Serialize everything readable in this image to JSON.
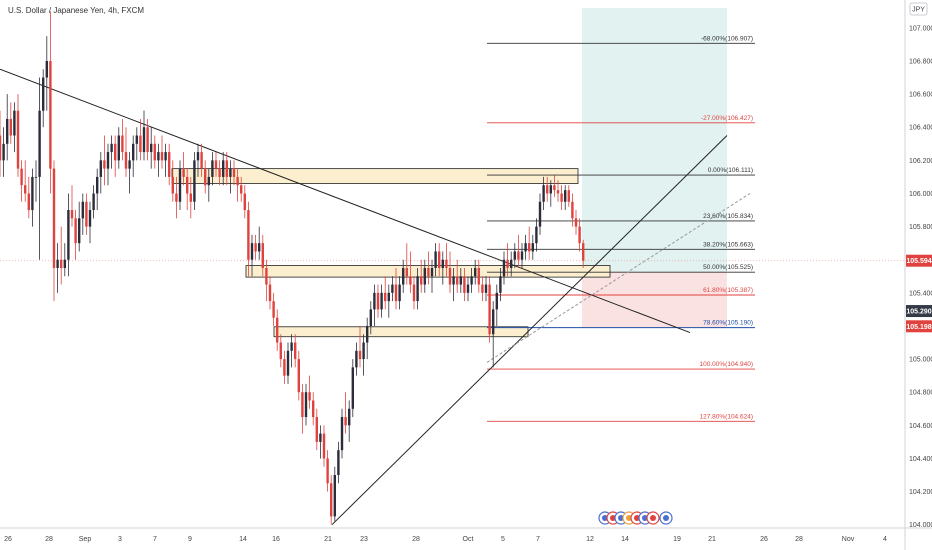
{
  "title": "U.S. Dollar / Japanese Yen, 4h, FXCM",
  "currency_badge": "JPY",
  "colors": {
    "up": "#2b2d3b",
    "down": "#e0433f",
    "fib_black": "#333333",
    "fib_red": "#e0433f",
    "fib_blue": "#1f4ea6",
    "zone_fill": "#fbefcf",
    "zone_stroke": "#222222",
    "target_fill": "#e1f2f0",
    "stop_fill": "#fbe2e2",
    "current_price_line": "#f2a0a0",
    "badge_red": "#e0433f",
    "badge_dark": "#333a45"
  },
  "chart_data": {
    "type": "candlestick",
    "title": "U.S. Dollar / Japanese Yen, 4h, FXCM",
    "ylim": [
      103.98,
      107.12
    ],
    "y_ticks": [
      "104.000",
      "104.200",
      "104.400",
      "104.600",
      "104.800",
      "105.000",
      "105.200",
      "105.400",
      "105.600",
      "105.800",
      "106.000",
      "106.200",
      "106.400",
      "106.600",
      "106.800",
      "107.000"
    ],
    "x_ticks": [
      {
        "label": "26",
        "x": 8
      },
      {
        "label": "28",
        "x": 49
      },
      {
        "label": "Sep",
        "x": 85
      },
      {
        "label": "3",
        "x": 120
      },
      {
        "label": "7",
        "x": 155
      },
      {
        "label": "9",
        "x": 190
      },
      {
        "label": "14",
        "x": 243
      },
      {
        "label": "16",
        "x": 276
      },
      {
        "label": "21",
        "x": 328
      },
      {
        "label": "23",
        "x": 364
      },
      {
        "label": "28",
        "x": 416
      },
      {
        "label": "Oct",
        "x": 468
      },
      {
        "label": "5",
        "x": 503
      },
      {
        "label": "7",
        "x": 538
      },
      {
        "label": "12",
        "x": 590
      },
      {
        "label": "14",
        "x": 625
      },
      {
        "label": "19",
        "x": 677
      },
      {
        "label": "21",
        "x": 712
      },
      {
        "label": "26",
        "x": 764
      },
      {
        "label": "28",
        "x": 799
      },
      {
        "label": "Nov",
        "x": 848
      },
      {
        "label": "4",
        "x": 885
      }
    ],
    "x_range": [
      0,
      905
    ],
    "candles": [
      [
        0,
        106.35,
        106.5,
        106.1,
        106.2
      ],
      [
        3.6,
        106.2,
        106.4,
        106.1,
        106.3
      ],
      [
        7.2,
        106.3,
        106.6,
        106.2,
        106.45
      ],
      [
        10.8,
        106.45,
        106.55,
        106.3,
        106.35
      ],
      [
        14.4,
        106.35,
        106.55,
        106.25,
        106.5
      ],
      [
        18,
        106.5,
        106.6,
        106.1,
        106.15
      ],
      [
        21.6,
        106.15,
        106.2,
        105.95,
        106.05
      ],
      [
        25.2,
        106.05,
        106.2,
        105.95,
        106.0
      ],
      [
        28.8,
        106.0,
        106.1,
        105.85,
        105.9
      ],
      [
        32.4,
        105.9,
        106.15,
        105.8,
        106.1
      ],
      [
        36,
        106.1,
        106.2,
        105.95,
        106.1
      ],
      [
        39.6,
        106.1,
        106.7,
        105.6,
        106.5
      ],
      [
        43.2,
        106.5,
        106.75,
        106.4,
        106.7
      ],
      [
        46.8,
        106.7,
        106.95,
        106.5,
        106.8
      ],
      [
        50.4,
        106.8,
        107.1,
        106.0,
        106.15
      ],
      [
        54,
        106.15,
        106.2,
        105.35,
        105.55
      ],
      [
        57.6,
        105.55,
        105.7,
        105.4,
        105.6
      ],
      [
        61.2,
        105.6,
        105.8,
        105.45,
        105.55
      ],
      [
        64.8,
        105.55,
        105.7,
        105.5,
        105.6
      ],
      [
        68.4,
        105.6,
        106.0,
        105.5,
        105.9
      ],
      [
        72,
        105.9,
        106.05,
        105.8,
        105.85
      ],
      [
        75.6,
        105.85,
        105.9,
        105.6,
        105.7
      ],
      [
        79.2,
        105.7,
        105.95,
        105.65,
        105.85
      ],
      [
        82.8,
        105.85,
        106.0,
        105.75,
        105.95
      ],
      [
        86.4,
        105.95,
        106.0,
        105.75,
        105.8
      ],
      [
        90,
        105.8,
        105.95,
        105.7,
        105.9
      ],
      [
        93.6,
        105.9,
        106.05,
        105.85,
        106.0
      ],
      [
        97.2,
        106.0,
        106.15,
        105.9,
        106.1
      ],
      [
        100.8,
        106.1,
        106.25,
        106.0,
        106.2
      ],
      [
        104.4,
        106.2,
        106.35,
        106.05,
        106.15
      ],
      [
        108,
        106.15,
        106.3,
        106.05,
        106.25
      ],
      [
        111.6,
        106.25,
        106.35,
        106.15,
        106.3
      ],
      [
        115.2,
        106.3,
        106.35,
        106.1,
        106.2
      ],
      [
        118.8,
        106.2,
        106.4,
        106.15,
        106.35
      ],
      [
        122.4,
        106.35,
        106.45,
        106.2,
        106.25
      ],
      [
        126,
        106.25,
        106.4,
        106.1,
        106.15
      ],
      [
        129.6,
        106.15,
        106.25,
        106.0,
        106.2
      ],
      [
        133.2,
        106.2,
        106.35,
        106.1,
        106.3
      ],
      [
        136.8,
        106.3,
        106.4,
        106.2,
        106.35
      ],
      [
        140.4,
        106.35,
        106.45,
        106.2,
        106.25
      ],
      [
        144,
        106.25,
        106.5,
        106.2,
        106.4
      ],
      [
        147.6,
        106.4,
        106.45,
        106.2,
        106.25
      ],
      [
        151.2,
        106.25,
        106.4,
        106.15,
        106.3
      ],
      [
        154.8,
        106.3,
        106.35,
        106.15,
        106.2
      ],
      [
        158.4,
        106.2,
        106.3,
        106.1,
        106.25
      ],
      [
        162,
        106.25,
        106.35,
        106.15,
        106.2
      ],
      [
        165.6,
        106.2,
        106.3,
        106.1,
        106.25
      ],
      [
        169.2,
        106.25,
        106.3,
        106.05,
        106.1
      ],
      [
        172.8,
        106.1,
        106.2,
        105.95,
        106.0
      ],
      [
        176.4,
        106.0,
        106.1,
        105.85,
        105.95
      ],
      [
        180,
        105.95,
        106.2,
        105.9,
        106.15
      ],
      [
        183.6,
        106.15,
        106.25,
        106.05,
        106.1
      ],
      [
        187.2,
        106.1,
        106.15,
        105.9,
        106.0
      ],
      [
        190.8,
        106.0,
        106.1,
        105.85,
        105.95
      ],
      [
        194.4,
        105.95,
        106.25,
        105.9,
        106.2
      ],
      [
        198,
        106.2,
        106.3,
        106.1,
        106.25
      ],
      [
        201.6,
        106.25,
        106.3,
        106.1,
        106.15
      ],
      [
        205.2,
        106.15,
        106.2,
        106.0,
        106.05
      ],
      [
        208.8,
        106.05,
        106.15,
        105.95,
        106.1
      ],
      [
        212.4,
        106.1,
        106.25,
        106.05,
        106.2
      ],
      [
        216,
        106.2,
        106.25,
        106.1,
        106.15
      ],
      [
        219.6,
        106.15,
        106.2,
        106.05,
        106.1
      ],
      [
        223.2,
        106.1,
        106.25,
        106.05,
        106.2
      ],
      [
        226.8,
        106.2,
        106.25,
        106.05,
        106.1
      ],
      [
        230.4,
        106.1,
        106.2,
        106.0,
        106.15
      ],
      [
        234,
        106.15,
        106.2,
        106.05,
        106.1
      ],
      [
        237.6,
        106.1,
        106.15,
        105.95,
        106.05
      ],
      [
        241.2,
        106.05,
        106.1,
        105.95,
        106.0
      ],
      [
        244.8,
        106.0,
        106.05,
        105.85,
        105.9
      ],
      [
        248.4,
        105.9,
        105.95,
        105.5,
        105.6
      ],
      [
        252,
        105.6,
        105.75,
        105.5,
        105.7
      ],
      [
        255.6,
        105.7,
        105.75,
        105.6,
        105.65
      ],
      [
        259.2,
        105.65,
        105.8,
        105.6,
        105.7
      ],
      [
        262.8,
        105.7,
        105.75,
        105.5,
        105.55
      ],
      [
        266.4,
        105.55,
        105.6,
        105.35,
        105.45
      ],
      [
        270,
        105.45,
        105.5,
        105.3,
        105.35
      ],
      [
        273.6,
        105.35,
        105.4,
        105.2,
        105.25
      ],
      [
        277.2,
        105.25,
        105.3,
        105.05,
        105.1
      ],
      [
        280.8,
        105.1,
        105.15,
        104.95,
        105.0
      ],
      [
        284.4,
        105.0,
        105.05,
        104.85,
        104.9
      ],
      [
        288,
        104.9,
        105.1,
        104.85,
        105.05
      ],
      [
        291.6,
        105.05,
        105.15,
        104.95,
        105.1
      ],
      [
        295.2,
        105.1,
        105.15,
        104.95,
        105.0
      ],
      [
        298.8,
        105.0,
        105.05,
        104.75,
        104.8
      ],
      [
        302.4,
        104.8,
        104.85,
        104.55,
        104.65
      ],
      [
        306,
        104.65,
        104.85,
        104.6,
        104.8
      ],
      [
        309.6,
        104.8,
        104.9,
        104.7,
        104.75
      ],
      [
        313.2,
        104.75,
        104.8,
        104.6,
        104.65
      ],
      [
        316.8,
        104.65,
        104.7,
        104.45,
        104.5
      ],
      [
        320.4,
        104.5,
        104.6,
        104.4,
        104.55
      ],
      [
        324,
        104.55,
        104.6,
        104.35,
        104.4
      ],
      [
        327.6,
        104.4,
        104.45,
        104.2,
        104.25
      ],
      [
        331.2,
        104.25,
        104.3,
        104.0,
        104.05
      ],
      [
        334.8,
        104.05,
        104.35,
        104.02,
        104.3
      ],
      [
        338.4,
        104.3,
        104.5,
        104.25,
        104.45
      ],
      [
        342,
        104.45,
        104.7,
        104.4,
        104.65
      ],
      [
        345.6,
        104.65,
        104.8,
        104.55,
        104.6
      ],
      [
        349.2,
        104.6,
        104.75,
        104.5,
        104.7
      ],
      [
        352.8,
        104.7,
        105.0,
        104.65,
        104.95
      ],
      [
        356.4,
        104.95,
        105.1,
        104.9,
        105.05
      ],
      [
        360,
        105.05,
        105.2,
        104.95,
        105.0
      ],
      [
        363.6,
        105.0,
        105.15,
        104.9,
        105.1
      ],
      [
        367.2,
        105.1,
        105.25,
        105.0,
        105.2
      ],
      [
        370.8,
        105.2,
        105.35,
        105.15,
        105.3
      ],
      [
        374.4,
        105.3,
        105.45,
        105.2,
        105.4
      ],
      [
        378,
        105.4,
        105.45,
        105.25,
        105.3
      ],
      [
        381.6,
        105.3,
        105.45,
        105.25,
        105.4
      ],
      [
        385.2,
        105.4,
        105.5,
        105.3,
        105.35
      ],
      [
        388.8,
        105.35,
        105.45,
        105.25,
        105.4
      ],
      [
        392.4,
        105.4,
        105.5,
        105.35,
        105.45
      ],
      [
        396,
        105.45,
        105.55,
        105.3,
        105.35
      ],
      [
        399.6,
        105.35,
        105.5,
        105.3,
        105.45
      ],
      [
        403.2,
        105.45,
        105.6,
        105.4,
        105.55
      ],
      [
        406.8,
        105.55,
        105.7,
        105.45,
        105.5
      ],
      [
        410.4,
        105.5,
        105.65,
        105.4,
        105.45
      ],
      [
        414,
        105.45,
        105.5,
        105.3,
        105.35
      ],
      [
        417.6,
        105.35,
        105.55,
        105.3,
        105.5
      ],
      [
        421.2,
        105.5,
        105.6,
        105.4,
        105.45
      ],
      [
        424.8,
        105.45,
        105.6,
        105.4,
        105.55
      ],
      [
        428.4,
        105.55,
        105.65,
        105.45,
        105.5
      ],
      [
        432,
        105.5,
        105.6,
        105.4,
        105.55
      ],
      [
        435.6,
        105.55,
        105.7,
        105.5,
        105.65
      ],
      [
        439.2,
        105.65,
        105.7,
        105.5,
        105.55
      ],
      [
        442.8,
        105.55,
        105.65,
        105.45,
        105.6
      ],
      [
        446.4,
        105.6,
        105.7,
        105.5,
        105.55
      ],
      [
        450,
        105.55,
        105.65,
        105.4,
        105.45
      ],
      [
        453.6,
        105.45,
        105.55,
        105.35,
        105.5
      ],
      [
        457.2,
        105.5,
        105.6,
        105.4,
        105.45
      ],
      [
        460.8,
        105.45,
        105.55,
        105.4,
        105.5
      ],
      [
        464.4,
        105.5,
        105.55,
        105.35,
        105.4
      ],
      [
        468,
        105.4,
        105.5,
        105.35,
        105.45
      ],
      [
        471.6,
        105.45,
        105.55,
        105.4,
        105.5
      ],
      [
        475.2,
        105.5,
        105.6,
        105.45,
        105.55
      ],
      [
        478.8,
        105.55,
        105.6,
        105.4,
        105.45
      ],
      [
        482.4,
        105.45,
        105.5,
        105.35,
        105.4
      ],
      [
        486,
        105.4,
        105.5,
        105.35,
        105.45
      ],
      [
        489.6,
        105.45,
        105.5,
        105.1,
        105.15
      ],
      [
        493.2,
        105.15,
        105.35,
        104.95,
        105.3
      ],
      [
        496.8,
        105.3,
        105.45,
        105.2,
        105.4
      ],
      [
        500.4,
        105.4,
        105.55,
        105.35,
        105.5
      ],
      [
        504,
        105.5,
        105.65,
        105.45,
        105.6
      ],
      [
        507.6,
        105.6,
        105.7,
        105.5,
        105.55
      ],
      [
        511.2,
        105.55,
        105.65,
        105.5,
        105.6
      ],
      [
        514.8,
        105.6,
        105.7,
        105.55,
        105.65
      ],
      [
        518.4,
        105.65,
        105.75,
        105.55,
        105.6
      ],
      [
        522,
        105.6,
        105.7,
        105.55,
        105.65
      ],
      [
        525.6,
        105.65,
        105.75,
        105.6,
        105.7
      ],
      [
        529.2,
        105.7,
        105.8,
        105.6,
        105.65
      ],
      [
        532.8,
        105.65,
        105.75,
        105.6,
        105.7
      ],
      [
        536.4,
        105.7,
        105.85,
        105.65,
        105.8
      ],
      [
        540,
        105.8,
        106.0,
        105.75,
        105.95
      ],
      [
        543.6,
        105.95,
        106.1,
        105.9,
        106.05
      ],
      [
        547.2,
        106.05,
        106.1,
        105.95,
        106.0
      ],
      [
        550.8,
        106.0,
        106.08,
        105.92,
        106.05
      ],
      [
        554.4,
        106.05,
        106.11,
        105.98,
        106.02
      ],
      [
        558,
        106.02,
        106.08,
        105.95,
        106.0
      ],
      [
        561.6,
        106.0,
        106.05,
        105.9,
        105.95
      ],
      [
        565.2,
        105.95,
        106.05,
        105.9,
        106.02
      ],
      [
        568.8,
        106.02,
        106.05,
        105.92,
        105.95
      ],
      [
        572.4,
        105.95,
        106.0,
        105.8,
        105.85
      ],
      [
        576,
        105.85,
        105.9,
        105.75,
        105.8
      ],
      [
        579.6,
        105.8,
        105.85,
        105.65,
        105.7
      ],
      [
        583.2,
        105.7,
        105.72,
        105.55,
        105.594
      ]
    ],
    "trendlines": [
      {
        "x1": 0,
        "y1": 106.75,
        "x2": 690,
        "y2": 105.16,
        "color": "#222222",
        "dash": false
      },
      {
        "x1": 332,
        "y1": 104.0,
        "x2": 727,
        "y2": 106.35,
        "color": "#222222",
        "dash": false
      },
      {
        "x1": 487,
        "y1": 104.98,
        "x2": 750,
        "y2": 106.0,
        "color": "#999999",
        "dash": true
      }
    ],
    "zones": [
      {
        "x1": 172,
        "x2": 578,
        "y_top": 106.15,
        "y_bottom": 106.06
      },
      {
        "x1": 246,
        "x2": 610,
        "y_top": 105.565,
        "y_bottom": 105.495
      },
      {
        "x1": 274,
        "x2": 528,
        "y_top": 105.195,
        "y_bottom": 105.135
      }
    ],
    "fib_levels": [
      {
        "label": "-68.00%(106.907)",
        "value": 106.907,
        "color": "fib_black"
      },
      {
        "label": "-27.00%(106.427)",
        "value": 106.427,
        "color": "fib_red"
      },
      {
        "label": "0.00%(106.111)",
        "value": 106.111,
        "color": "fib_black"
      },
      {
        "label": "23.60%(105.834)",
        "value": 105.834,
        "color": "fib_black"
      },
      {
        "label": "38.20%(105.663)",
        "value": 105.663,
        "color": "fib_black"
      },
      {
        "label": "50.00%(105.525)",
        "value": 105.525,
        "color": "fib_black"
      },
      {
        "label": "61.80%(105.387)",
        "value": 105.387,
        "color": "fib_red"
      },
      {
        "label": "78.60%(105.190)",
        "value": 105.19,
        "color": "fib_blue"
      },
      {
        "label": "100.00%(104.940)",
        "value": 104.94,
        "color": "fib_red"
      },
      {
        "label": "127.80%(104.624)",
        "value": 104.624,
        "color": "fib_red"
      }
    ],
    "fib_x_range": [
      487,
      755
    ],
    "position_tool": {
      "x1": 582,
      "x2": 727,
      "target_top": 107.12,
      "entry": 105.525,
      "stop": 105.19
    },
    "price_badges": [
      {
        "label": "105.594",
        "value": 105.594,
        "color": "badge_red"
      },
      {
        "label": "105.290",
        "value": 105.29,
        "color": "badge_dark"
      },
      {
        "label": "105.198",
        "value": 105.198,
        "color": "badge_red"
      }
    ],
    "current_price": 105.594,
    "grid": false,
    "legend": "none"
  }
}
